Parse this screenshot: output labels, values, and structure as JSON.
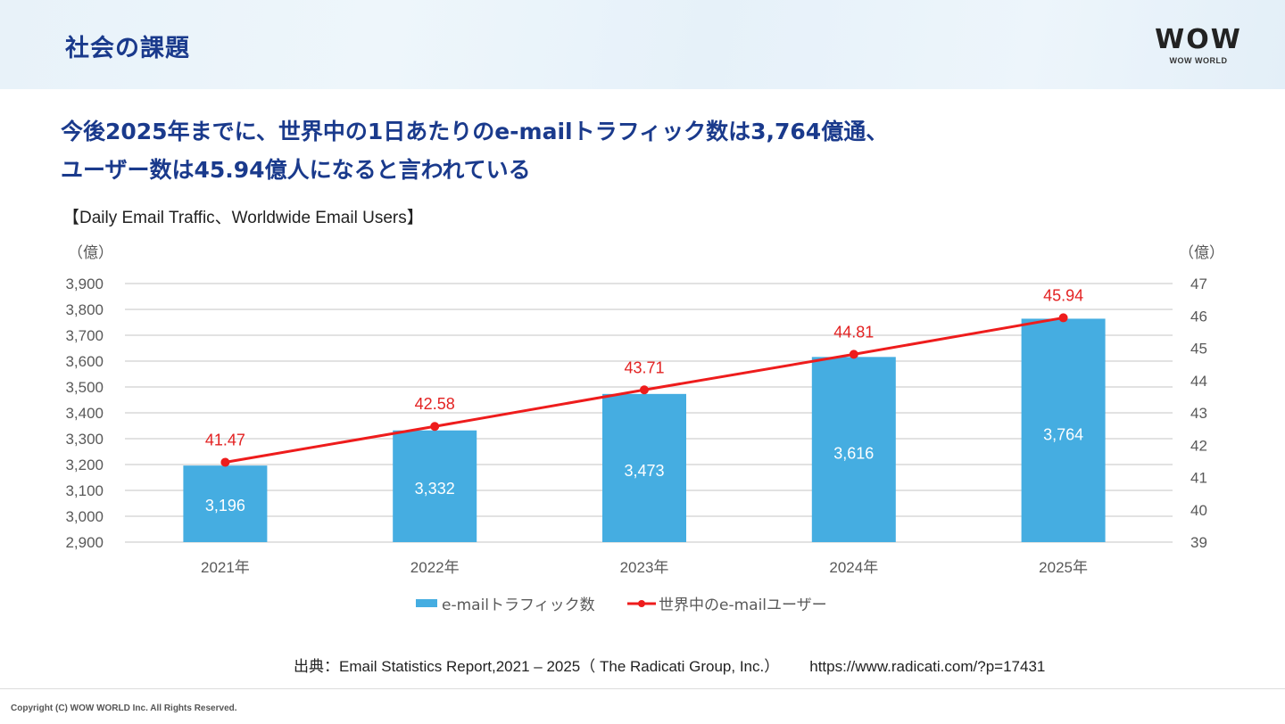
{
  "header": {
    "title": "社会の課題",
    "logo_mark": "WOW",
    "logo_sub": "WOW WORLD"
  },
  "headline": {
    "line1": "今後2025年までに、世界中の1日あたりのe-mailトラフィック数は3,764億通、",
    "line2": "ユーザー数は45.94億人になると言われている"
  },
  "source": {
    "citation": "出典：Email Statistics Report,2021 – 2025（ The Radicati Group, Inc.）",
    "url": "https://www.radicati.com/?p=17431"
  },
  "footer": {
    "copyright": "Copyright (C) WOW WORLD Inc. All Rights Reserved."
  },
  "colors": {
    "bar": "#45ade1",
    "line": "#ee1c1c",
    "line_label": "#e32222",
    "grid": "#d9d9d9",
    "axis_text": "#595959"
  },
  "chart_data": {
    "type": "bar",
    "title": "【Daily Email Traffic、Worldwide Email Users】",
    "categories": [
      "2021年",
      "2022年",
      "2023年",
      "2024年",
      "2025年"
    ],
    "series": [
      {
        "name": "e-mailトラフィック数",
        "type": "bar",
        "axis": "left",
        "values": [
          3196,
          3332,
          3473,
          3616,
          3764
        ],
        "labels": [
          "3,196",
          "3,332",
          "3,473",
          "3,616",
          "3,764"
        ]
      },
      {
        "name": "世界中のe-mailユーザー",
        "type": "line",
        "axis": "right",
        "values": [
          41.47,
          42.58,
          43.71,
          44.81,
          45.94
        ],
        "labels": [
          "41.47",
          "42.58",
          "43.71",
          "44.81",
          "45.94"
        ]
      }
    ],
    "y_left": {
      "unit_label": "（億）",
      "range": [
        2900,
        3900
      ],
      "ticks": [
        "3,900",
        "3,800",
        "3,700",
        "3,600",
        "3,500",
        "3,400",
        "3,300",
        "3,200",
        "3,100",
        "3,000",
        "2,900"
      ],
      "tick_values": [
        3900,
        3800,
        3700,
        3600,
        3500,
        3400,
        3300,
        3200,
        3100,
        3000,
        2900
      ]
    },
    "y_right": {
      "unit_label": "（億）",
      "range": [
        39,
        47
      ],
      "ticks": [
        "47",
        "46",
        "45",
        "44",
        "43",
        "42",
        "41",
        "40",
        "39"
      ],
      "tick_values": [
        47,
        46,
        45,
        44,
        43,
        42,
        41,
        40,
        39
      ]
    },
    "grid": true,
    "legend": "bottom"
  }
}
